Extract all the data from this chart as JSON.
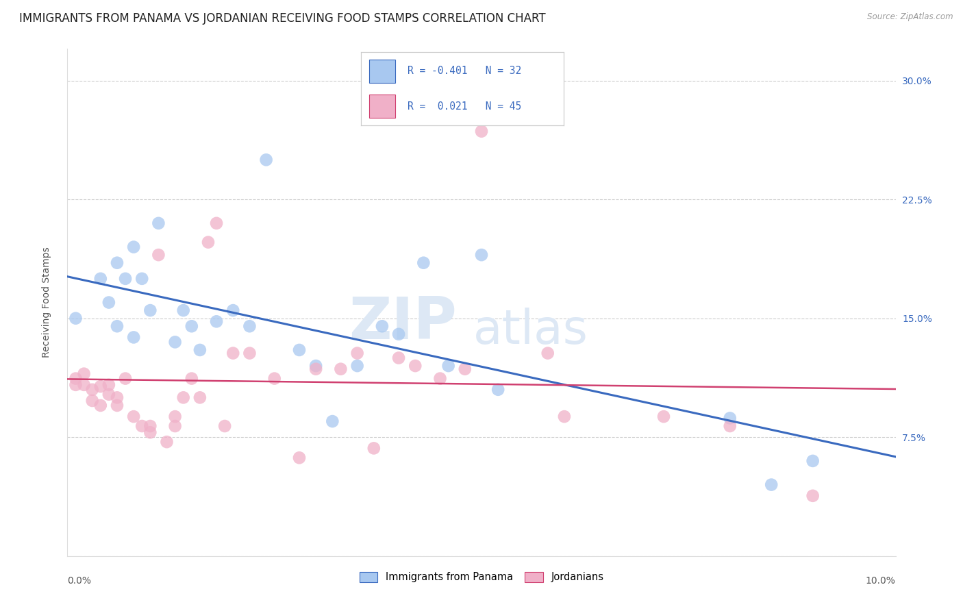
{
  "title": "IMMIGRANTS FROM PANAMA VS JORDANIAN RECEIVING FOOD STAMPS CORRELATION CHART",
  "source": "Source: ZipAtlas.com",
  "ylabel": "Receiving Food Stamps",
  "yticks": [
    0.0,
    0.075,
    0.15,
    0.225,
    0.3
  ],
  "ytick_labels": [
    "",
    "7.5%",
    "15.0%",
    "22.5%",
    "30.0%"
  ],
  "xmin": 0.0,
  "xmax": 0.1,
  "ymin": 0.0,
  "ymax": 0.32,
  "legend_R_blue": "-0.401",
  "legend_N_blue": "32",
  "legend_R_pink": " 0.021",
  "legend_N_pink": "45",
  "legend_label_blue": "Immigrants from Panama",
  "legend_label_pink": "Jordanians",
  "blue_scatter_color": "#a8c8f0",
  "pink_scatter_color": "#f0b0c8",
  "blue_line_color": "#3a6abf",
  "pink_line_color": "#d04070",
  "watermark_ZIP": "ZIP",
  "watermark_atlas": "atlas",
  "background_color": "#ffffff",
  "grid_color": "#cccccc",
  "title_fontsize": 12,
  "axis_label_fontsize": 10,
  "tick_fontsize": 10,
  "blue_points_x": [
    0.001,
    0.004,
    0.005,
    0.006,
    0.006,
    0.007,
    0.008,
    0.008,
    0.009,
    0.01,
    0.011,
    0.013,
    0.014,
    0.015,
    0.016,
    0.018,
    0.02,
    0.022,
    0.024,
    0.028,
    0.03,
    0.032,
    0.035,
    0.038,
    0.04,
    0.043,
    0.046,
    0.05,
    0.052,
    0.08,
    0.085,
    0.09
  ],
  "blue_points_y": [
    0.15,
    0.175,
    0.16,
    0.145,
    0.185,
    0.175,
    0.195,
    0.138,
    0.175,
    0.155,
    0.21,
    0.135,
    0.155,
    0.145,
    0.13,
    0.148,
    0.155,
    0.145,
    0.25,
    0.13,
    0.12,
    0.085,
    0.12,
    0.145,
    0.14,
    0.185,
    0.12,
    0.19,
    0.105,
    0.087,
    0.045,
    0.06
  ],
  "pink_points_x": [
    0.001,
    0.001,
    0.002,
    0.002,
    0.003,
    0.003,
    0.004,
    0.004,
    0.005,
    0.005,
    0.006,
    0.006,
    0.007,
    0.008,
    0.009,
    0.01,
    0.01,
    0.011,
    0.012,
    0.013,
    0.013,
    0.014,
    0.015,
    0.016,
    0.017,
    0.018,
    0.019,
    0.02,
    0.022,
    0.025,
    0.028,
    0.03,
    0.033,
    0.035,
    0.037,
    0.04,
    0.042,
    0.045,
    0.048,
    0.05,
    0.058,
    0.06,
    0.072,
    0.08,
    0.09
  ],
  "pink_points_y": [
    0.112,
    0.108,
    0.115,
    0.108,
    0.105,
    0.098,
    0.095,
    0.107,
    0.102,
    0.108,
    0.095,
    0.1,
    0.112,
    0.088,
    0.082,
    0.078,
    0.082,
    0.19,
    0.072,
    0.082,
    0.088,
    0.1,
    0.112,
    0.1,
    0.198,
    0.21,
    0.082,
    0.128,
    0.128,
    0.112,
    0.062,
    0.118,
    0.118,
    0.128,
    0.068,
    0.125,
    0.12,
    0.112,
    0.118,
    0.268,
    0.128,
    0.088,
    0.088,
    0.082,
    0.038
  ]
}
